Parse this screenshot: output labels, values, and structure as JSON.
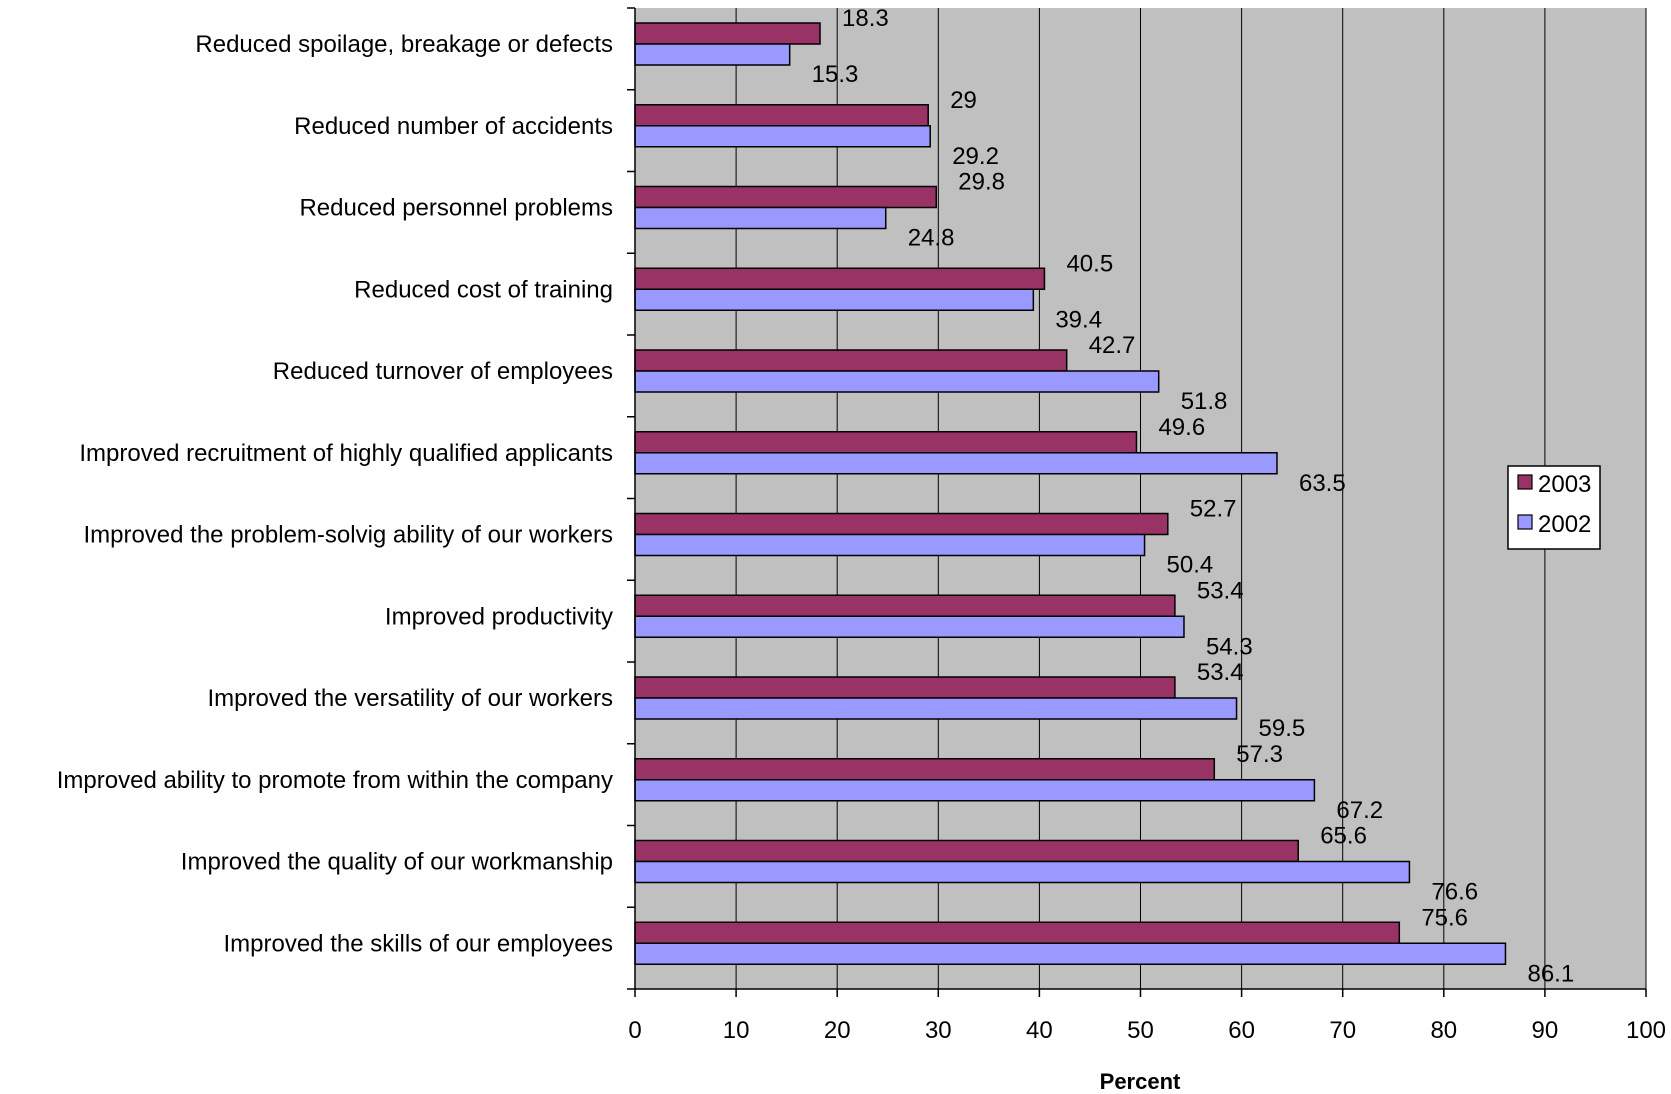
{
  "chart_data": {
    "type": "bar",
    "orientation": "horizontal",
    "categories": [
      "Reduced spoilage, breakage or defects",
      "Reduced number of accidents",
      "Reduced personnel problems",
      "Reduced cost of training",
      "Reduced turnover of employees",
      "Improved recruitment of highly qualified applicants",
      "Improved the problem-solvig ability of our workers",
      "Improved productivity",
      "Improved the versatility of our workers",
      "Improved ability to promote from within the company",
      "Improved the quality of our workmanship",
      "Improved the skills of our employees"
    ],
    "series": [
      {
        "name": "2003",
        "color": "#993366",
        "values": [
          18.3,
          29,
          29.8,
          40.5,
          42.7,
          49.6,
          52.7,
          53.4,
          53.4,
          57.3,
          65.6,
          75.6
        ]
      },
      {
        "name": "2002",
        "color": "#9999ff",
        "values": [
          15.3,
          29.2,
          24.8,
          39.4,
          51.8,
          63.5,
          50.4,
          54.3,
          59.5,
          67.2,
          76.6,
          86.1
        ]
      }
    ],
    "data_labels": {
      "2003": [
        "18.3",
        "29",
        "29.8",
        "40.5",
        "42.7",
        "49.6",
        "52.7",
        "53.4",
        "53.4",
        "57.3",
        "65.6",
        "75.6"
      ],
      "2002": [
        "15.3",
        "29.2",
        "24.8",
        "39.4",
        "51.8",
        "63.5",
        "50.4",
        "54.3",
        "59.5",
        "67.2",
        "76.6",
        "86.1"
      ]
    },
    "xlabel": "Percent",
    "xlim": [
      0,
      100
    ],
    "xticks": [
      "0",
      "10",
      "20",
      "30",
      "40",
      "50",
      "60",
      "70",
      "80",
      "90",
      "100"
    ],
    "grid": "vertical",
    "plot_background": "#c0c0c0",
    "legend": {
      "placement": "right",
      "entries": [
        "2003",
        "2002"
      ]
    }
  }
}
